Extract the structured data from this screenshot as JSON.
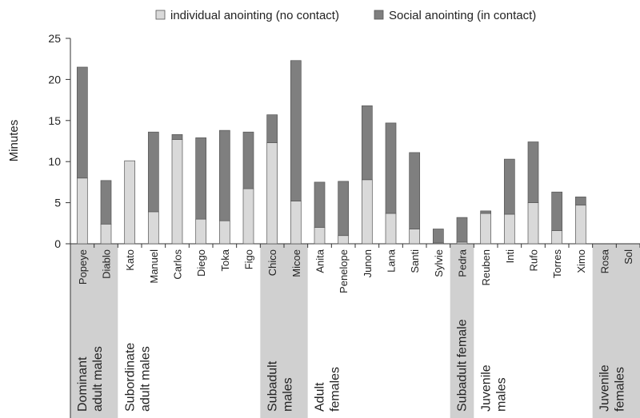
{
  "chart_data": {
    "type": "bar",
    "stacked": true,
    "ylabel": "Minutes",
    "ylim": [
      0,
      25
    ],
    "yticks": [
      0,
      5,
      10,
      15,
      20,
      25
    ],
    "grid": false,
    "legend_position": "top",
    "categories": [
      "Popeye",
      "Diablo",
      "Kato",
      "Manuel",
      "Carlos",
      "Diego",
      "Toka",
      "Figo",
      "Chico",
      "Micoe",
      "Anita",
      "Penelope",
      "Junon",
      "Lana",
      "Santi",
      "Sylvie",
      "Pedra",
      "Reuben",
      "Inti",
      "Rufo",
      "Torres",
      "Ximo",
      "Rosa",
      "Sol"
    ],
    "series": [
      {
        "name": "individual anointing (no contact)",
        "color": "#d9d9d9",
        "values": [
          8.0,
          2.4,
          10.1,
          3.9,
          12.7,
          3.0,
          2.8,
          6.7,
          12.3,
          5.2,
          2.0,
          1.0,
          7.8,
          3.7,
          1.8,
          0.1,
          0.2,
          3.7,
          3.6,
          5.0,
          1.6,
          4.7,
          0,
          0
        ]
      },
      {
        "name": "Social anointing (in contact)",
        "color": "#7f7f7f",
        "values": [
          13.5,
          5.3,
          0,
          9.7,
          0.6,
          9.9,
          11.0,
          6.9,
          3.4,
          17.1,
          5.5,
          6.6,
          9.0,
          11.0,
          9.3,
          1.7,
          3.0,
          0.3,
          6.7,
          7.4,
          4.7,
          1.0,
          0,
          0
        ]
      }
    ],
    "groups": [
      {
        "label": [
          "Dominant",
          "adult males"
        ],
        "members": [
          "Popeye",
          "Diablo"
        ],
        "shaded": true
      },
      {
        "label": [
          "Subordinate",
          "adult males"
        ],
        "members": [
          "Kato",
          "Manuel",
          "Carlos",
          "Diego",
          "Toka",
          "Figo"
        ],
        "shaded": false
      },
      {
        "label": [
          "Subadult",
          "males"
        ],
        "members": [
          "Chico",
          "Micoe"
        ],
        "shaded": true
      },
      {
        "label": [
          "Adult",
          "females"
        ],
        "members": [
          "Anita",
          "Penelope",
          "Junon",
          "Lana",
          "Santi",
          "Sylvie"
        ],
        "shaded": false
      },
      {
        "label": [
          "Subadult female"
        ],
        "members": [
          "Pedra"
        ],
        "shaded": true
      },
      {
        "label": [
          "Juvenile",
          "males"
        ],
        "members": [
          "Reuben",
          "Inti",
          "Rufo",
          "Torres",
          "Ximo"
        ],
        "shaded": false
      },
      {
        "label": [
          "Juvenile",
          "females"
        ],
        "members": [
          "Rosa",
          "Sol"
        ],
        "shaded": true
      }
    ]
  }
}
